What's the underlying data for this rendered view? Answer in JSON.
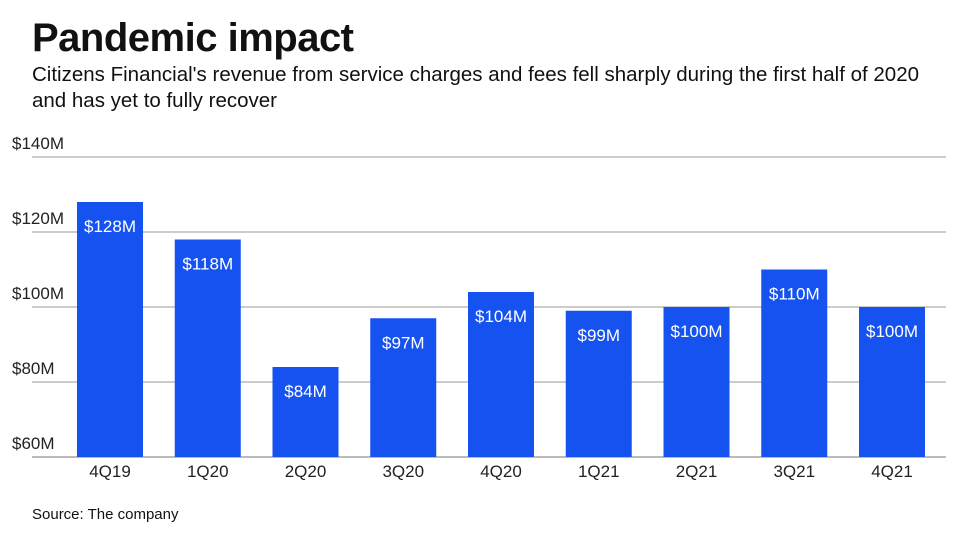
{
  "source": "Source: The company",
  "chart_data": {
    "type": "bar",
    "title": "Pandemic impact",
    "subtitle": "Citizens Financial's revenue from service charges and fees fell sharply during the first half of 2020 and has yet to fully recover",
    "categories": [
      "4Q19",
      "1Q20",
      "2Q20",
      "3Q20",
      "4Q20",
      "1Q21",
      "2Q21",
      "3Q21",
      "4Q21"
    ],
    "values": [
      128,
      118,
      84,
      97,
      104,
      99,
      100,
      110,
      100
    ],
    "data_labels": [
      "$128M",
      "$118M",
      "$84M",
      "$97M",
      "$104M",
      "$99M",
      "$100M",
      "$110M",
      "$100M"
    ],
    "yticks": [
      60,
      80,
      100,
      120,
      140
    ],
    "ytick_labels": [
      "$60M",
      "$80M",
      "$100M",
      "$120M",
      "$140M"
    ],
    "ylim": [
      60,
      140
    ],
    "xlabel": "",
    "ylabel": "",
    "grid": true,
    "bar_color": "#1652f0"
  }
}
